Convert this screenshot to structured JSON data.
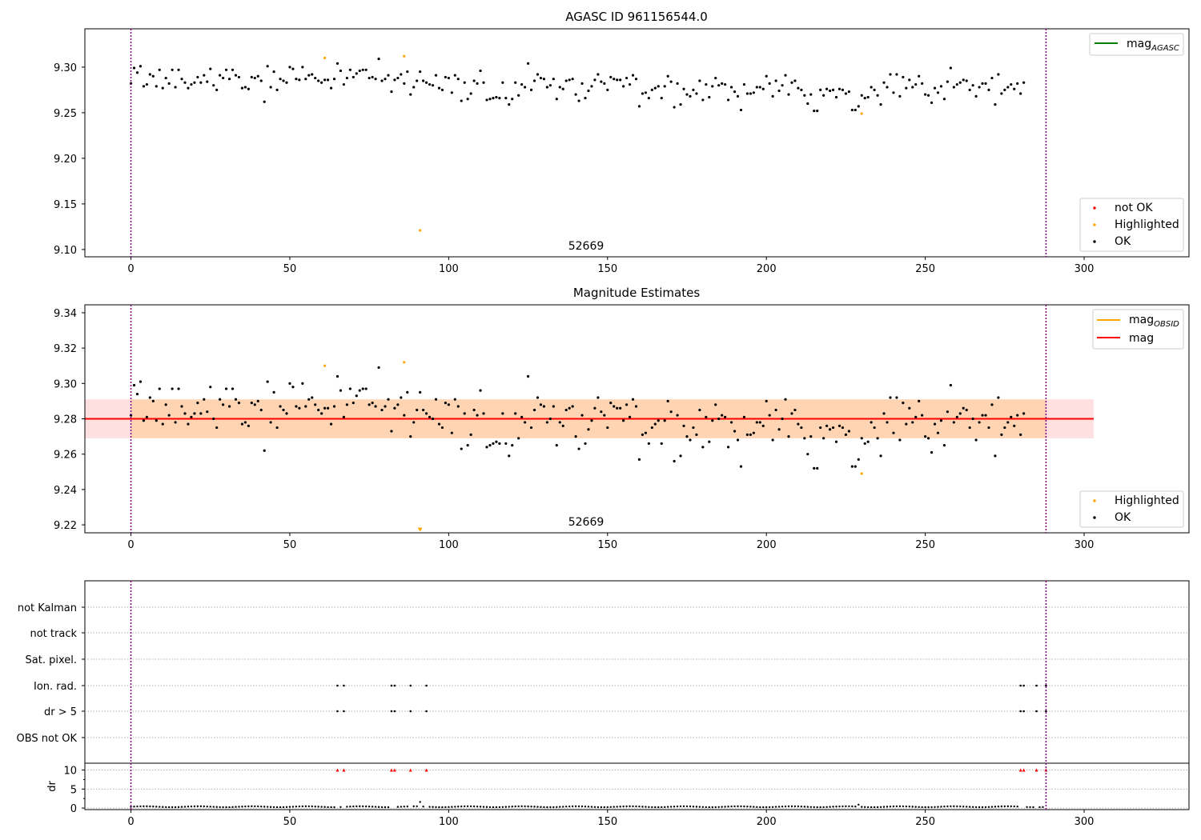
{
  "chart_data": [
    {
      "type": "scatter",
      "title": "AGASC ID 961156544.0",
      "xlim": [
        -14.5,
        333
      ],
      "ylim": [
        9.092,
        9.342
      ],
      "xticks": [
        0,
        50,
        100,
        150,
        200,
        250,
        300
      ],
      "yticks": [
        9.1,
        9.15,
        9.2,
        9.25,
        9.3
      ],
      "ytick_labels": [
        "9.10",
        "9.15",
        "9.20",
        "9.25",
        "9.30"
      ],
      "obsid_label": "52669",
      "obsid_boundaries": [
        0,
        288
      ],
      "legend_lines": [
        {
          "label": "mag",
          "subscript": "AGASC",
          "color": "#008000"
        }
      ],
      "legend_points": [
        {
          "label": "not OK",
          "color": "#ff0000"
        },
        {
          "label": "Highlighted",
          "color": "#ffa500"
        },
        {
          "label": "OK",
          "color": "#000000"
        }
      ],
      "highlighted_points": [
        {
          "x": 61,
          "y": 9.31
        },
        {
          "x": 86,
          "y": 9.312
        },
        {
          "x": 91,
          "y": 9.121
        },
        {
          "x": 230,
          "y": 9.249
        }
      ],
      "ok_series": {
        "x_start": 0,
        "x_step": 1,
        "y": [
          9.282,
          9.299,
          9.294,
          9.301,
          9.279,
          9.281,
          9.292,
          9.29,
          9.279,
          9.297,
          9.277,
          9.288,
          9.282,
          9.297,
          9.278,
          9.297,
          9.287,
          9.283,
          9.277,
          9.281,
          9.283,
          9.289,
          9.283,
          9.291,
          9.284,
          9.298,
          9.28,
          9.275,
          9.291,
          9.288,
          9.297,
          9.287,
          9.297,
          9.291,
          9.289,
          9.277,
          9.278,
          9.276,
          9.289,
          9.288,
          9.29,
          9.285,
          9.262,
          9.301,
          9.278,
          9.295,
          9.275,
          9.287,
          9.285,
          9.283,
          9.3,
          9.298,
          9.287,
          9.286,
          9.3,
          9.287,
          9.291,
          9.292,
          9.288,
          9.285,
          9.283,
          9.286,
          9.286,
          9.277,
          9.287,
          9.304,
          9.296,
          9.281,
          9.288,
          9.297,
          9.289,
          9.293,
          9.296,
          9.297,
          9.297,
          9.288,
          9.289,
          9.287,
          9.309,
          9.285,
          9.287,
          9.291,
          9.273,
          9.286,
          9.288,
          9.292,
          9.282,
          9.295,
          9.27,
          9.278,
          9.285,
          9.295,
          9.285,
          9.283,
          9.281,
          9.28,
          9.291,
          9.277,
          9.275,
          9.289,
          9.288,
          9.272,
          9.291,
          9.287,
          9.263,
          9.283,
          9.265,
          9.271,
          9.285,
          9.282,
          9.296,
          9.283,
          9.264,
          9.265,
          9.266,
          9.267,
          9.266,
          9.283,
          9.266,
          9.259,
          9.265,
          9.283,
          9.269,
          9.281,
          9.278,
          9.304,
          9.275,
          9.285,
          9.292,
          9.288,
          9.287,
          9.278,
          9.28,
          9.287,
          9.265,
          9.278,
          9.276,
          9.285,
          9.286,
          9.287,
          9.27,
          9.263,
          9.282,
          9.266,
          9.274,
          9.279,
          9.286,
          9.292,
          9.284,
          9.282,
          9.275,
          9.289,
          9.287,
          9.286,
          9.286,
          9.279,
          9.288,
          9.281,
          9.291,
          9.287,
          9.257,
          9.271,
          9.272,
          9.266,
          9.275,
          9.277,
          9.279,
          9.266,
          9.279,
          9.29,
          9.284,
          9.256,
          9.282,
          9.259,
          9.276,
          9.27,
          9.268,
          9.275,
          9.271,
          9.285,
          9.264,
          9.281,
          9.267,
          9.279,
          9.288,
          9.28,
          9.282,
          9.281,
          9.264,
          9.278,
          9.273,
          9.268,
          9.253,
          9.281,
          9.271,
          9.271,
          9.272,
          9.278,
          9.278,
          9.276,
          9.29,
          9.282,
          9.268,
          9.285,
          9.274,
          9.28,
          9.291,
          9.27,
          9.283,
          9.285,
          9.277,
          9.275,
          9.269,
          9.26,
          9.27,
          9.252,
          9.252,
          9.275,
          9.269,
          9.276,
          9.274,
          9.275,
          9.267,
          9.276,
          9.275,
          9.271,
          9.273,
          9.253,
          9.253,
          9.257,
          9.269,
          9.266,
          9.267,
          9.278,
          9.275,
          9.269,
          9.259,
          9.283,
          9.278,
          9.292,
          9.272,
          9.292,
          9.268,
          9.289,
          9.277,
          9.286,
          9.278,
          9.281,
          9.29,
          9.282,
          9.27,
          9.269,
          9.261,
          9.277,
          9.272,
          9.279,
          9.265,
          9.284,
          9.299,
          9.278,
          9.281,
          9.283,
          9.286,
          9.285,
          9.275,
          9.28,
          9.268,
          9.278,
          9.282,
          9.282,
          9.275,
          9.288,
          9.259,
          9.292,
          9.271,
          9.275,
          9.278,
          9.281,
          9.276,
          9.282,
          9.271,
          9.283
        ]
      }
    },
    {
      "type": "scatter",
      "title": "Magnitude Estimates",
      "xlim": [
        -14.5,
        333
      ],
      "ylim": [
        9.2155,
        9.3445
      ],
      "xticks": [
        0,
        50,
        100,
        150,
        200,
        250,
        300
      ],
      "yticks": [
        9.22,
        9.24,
        9.26,
        9.28,
        9.3,
        9.32,
        9.34
      ],
      "ytick_labels": [
        "9.22",
        "9.24",
        "9.26",
        "9.28",
        "9.30",
        "9.32",
        "9.34"
      ],
      "obsid_label": "52669",
      "obsid_boundaries": [
        0,
        288
      ],
      "mag": 9.28,
      "mag_band": [
        9.269,
        9.291
      ],
      "mag_obsid_band": [
        9.269,
        9.291
      ],
      "band_x_end": 303,
      "legend_lines": [
        {
          "label": "mag",
          "subscript": "OBSID",
          "color": "#ffa500"
        },
        {
          "label": "mag",
          "subscript": "",
          "color": "#ff0000"
        }
      ],
      "legend_points": [
        {
          "label": "Highlighted",
          "color": "#ffa500"
        },
        {
          "label": "OK",
          "color": "#000000"
        }
      ],
      "highlighted_points": [
        {
          "x": 61,
          "y": 9.31
        },
        {
          "x": 86,
          "y": 9.312
        },
        {
          "x": 230,
          "y": 9.249
        }
      ],
      "offscale_markers": [
        {
          "x": 91,
          "y": 9.217
        }
      ]
    },
    {
      "type": "scatter",
      "title": "",
      "xlim": [
        -14.5,
        333
      ],
      "flag_rows": [
        "not Kalman",
        "not track",
        "Sat. pixel.",
        "Ion. rad.",
        "dr > 5",
        "OBS not OK"
      ],
      "flag_points": {
        "Ion. rad.": [
          65,
          67,
          82,
          83,
          88,
          93,
          280,
          281,
          285,
          288
        ],
        "dr > 5": [
          65,
          67,
          82,
          83,
          88,
          93,
          280,
          281,
          285,
          288
        ]
      },
      "obsid_boundaries": [
        0,
        288
      ]
    },
    {
      "type": "scatter",
      "title": "",
      "xlim": [
        -14.5,
        333
      ],
      "ylim": [
        -0.4,
        11.8
      ],
      "xticks": [
        0,
        50,
        100,
        150,
        200,
        250,
        300
      ],
      "yticks": [
        0,
        5,
        10
      ],
      "ytick_labels": [
        "0",
        "5",
        "10"
      ],
      "ylabel": "dr",
      "clipped_markers_x": [
        65,
        67,
        82,
        83,
        88,
        93,
        280,
        281,
        285,
        288
      ],
      "dr_base": 0.35,
      "dr_peaks": [
        {
          "x": 91,
          "y": 1.6
        },
        {
          "x": 229,
          "y": 0.9
        }
      ],
      "obsid_boundaries": [
        0,
        288
      ]
    }
  ]
}
